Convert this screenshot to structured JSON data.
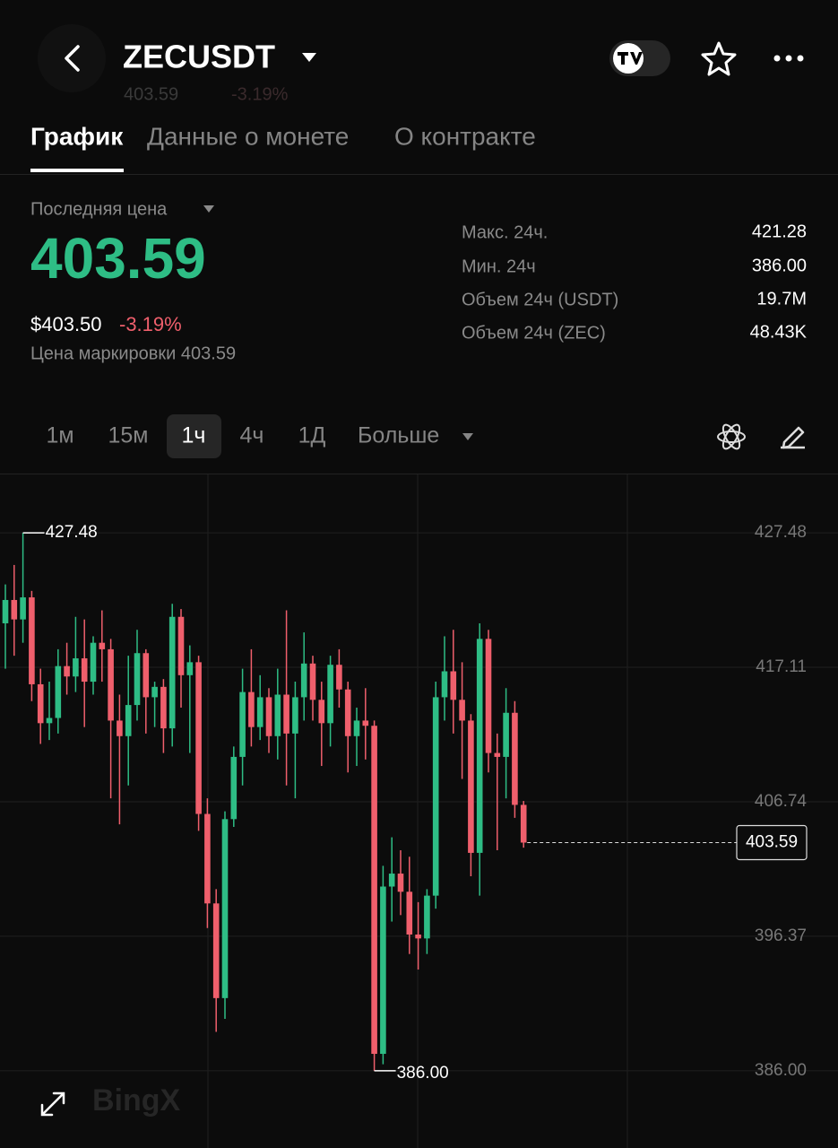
{
  "header": {
    "symbol": "ZECUSDT",
    "ghost_price": "403.59",
    "ghost_change": "-3.19%"
  },
  "tabs": [
    "График",
    "Данные о монете",
    "О контракте"
  ],
  "price": {
    "label": "Последняя цена",
    "last": "403.59",
    "usd": "$403.50",
    "change": "-3.19%",
    "mark": "Цена маркировки 403.59"
  },
  "stats": [
    {
      "label": "Макс. 24ч.",
      "value": "421.28"
    },
    {
      "label": "Мин. 24ч",
      "value": "386.00"
    },
    {
      "label": "Объем 24ч (USDT)",
      "value": "19.7M"
    },
    {
      "label": "Объем 24ч (ZEC)",
      "value": "48.43K"
    }
  ],
  "intervals": [
    "1м",
    "15м",
    "1ч",
    "4ч",
    "1Д",
    "Больше"
  ],
  "watermark": "BingX",
  "chart_data": {
    "type": "candlestick",
    "open": [
      420.5,
      422.3,
      420.8,
      422.5,
      415.8,
      412.8,
      413.2,
      417.2,
      416.4,
      417.8,
      416,
      419,
      418.5,
      413,
      411.8,
      414.2,
      418.2,
      414.8,
      415.6,
      412.4,
      421,
      416.5,
      417.5,
      405.8,
      398.9,
      391.6,
      405.4,
      410.2,
      415.2,
      412.5,
      414.8,
      411.8,
      415,
      412,
      414.8,
      417.4,
      414.6,
      412.8,
      417.3,
      415.4,
      411.8,
      413,
      412.6,
      387.3,
      400.2,
      401.2,
      399.8,
      396.5,
      396.2,
      399.5,
      414.8,
      416.8,
      414.6,
      413,
      402.8,
      419.3,
      410.5,
      410.2,
      413.6,
      406.5
    ],
    "high": [
      423.5,
      425,
      427.48,
      423,
      417,
      416,
      418.5,
      419,
      421,
      420.8,
      419.5,
      421.5,
      419.3,
      415,
      418,
      420,
      418.5,
      416,
      416.2,
      422,
      421.6,
      418.8,
      418,
      407,
      400,
      406,
      411,
      417,
      418.5,
      416.5,
      415.5,
      417,
      421.5,
      416,
      419.8,
      418,
      416,
      418,
      418.5,
      416,
      414,
      415.5,
      413,
      401.8,
      404,
      403,
      402.5,
      399,
      400,
      416,
      419.5,
      420,
      417.5,
      413.5,
      420.5,
      420,
      412,
      415.5,
      414.5,
      406.8
    ],
    "low": [
      417,
      418,
      419,
      414.5,
      411.2,
      411.5,
      412,
      415,
      415.2,
      412.5,
      415,
      416,
      407,
      405,
      408,
      413,
      412,
      412.5,
      410.5,
      411,
      414,
      410.5,
      404.5,
      397,
      389,
      390,
      404.8,
      408,
      411,
      411.5,
      410.5,
      410,
      408,
      407,
      413,
      413,
      409.5,
      411,
      414,
      409,
      409.5,
      410,
      386,
      386.5,
      397.5,
      398,
      395,
      393.8,
      395,
      398.5,
      413,
      412,
      408.5,
      401,
      399.5,
      409,
      403,
      407,
      405.5,
      403.2
    ],
    "close": [
      422.3,
      420.8,
      422.5,
      415.8,
      412.8,
      413.2,
      417.2,
      416.4,
      417.8,
      416,
      419,
      418.5,
      413,
      411.8,
      414.2,
      418.2,
      414.8,
      415.6,
      412.4,
      421,
      416.5,
      417.5,
      405.8,
      398.9,
      391.6,
      405.4,
      410.2,
      415.2,
      412.5,
      414.8,
      411.8,
      415,
      412,
      414.8,
      417.4,
      414.6,
      412.8,
      417.3,
      415.4,
      411.8,
      413,
      412.6,
      387.3,
      400.2,
      401.2,
      399.8,
      396.5,
      396.2,
      399.5,
      414.8,
      416.8,
      414.6,
      413,
      402.8,
      419.3,
      410.5,
      410.2,
      413.6,
      406.5,
      403.59
    ],
    "ylim": [
      380.04,
      431.98
    ],
    "yticks": [
      427.48,
      417.11,
      406.74,
      396.37,
      {
        "value": 386,
        "label": "386.00"
      }
    ],
    "grid": true,
    "up_color": "#2ebd85",
    "down_color": "#ef5f6c",
    "annotations": [
      {
        "value": 427.48,
        "label": "427.48"
      },
      {
        "value": 386,
        "label": "386.00"
      },
      {
        "value": 403.59,
        "label": "403.59"
      }
    ]
  }
}
